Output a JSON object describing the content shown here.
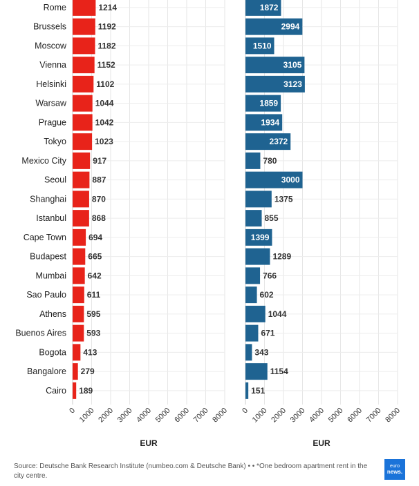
{
  "chart_data": [
    {
      "type": "bar",
      "orientation": "horizontal",
      "categories": [
        "Rome",
        "Brussels",
        "Moscow",
        "Vienna",
        "Helsinki",
        "Warsaw",
        "Prague",
        "Tokyo",
        "Mexico City",
        "Seoul",
        "Shanghai",
        "Istanbul",
        "Cape Town",
        "Budapest",
        "Mumbai",
        "Sao Paulo",
        "Athens",
        "Buenos Aires",
        "Bogota",
        "Bangalore",
        "Cairo"
      ],
      "values": [
        1214,
        1192,
        1182,
        1152,
        1102,
        1044,
        1042,
        1023,
        917,
        887,
        870,
        868,
        694,
        665,
        642,
        611,
        595,
        593,
        413,
        279,
        189
      ],
      "xlabel": "EUR",
      "xlim": [
        0,
        8000
      ],
      "ticks": [
        0,
        1000,
        2000,
        3000,
        4000,
        5000,
        6000,
        7000,
        8000
      ],
      "color": "#e8231a",
      "grid": true
    },
    {
      "type": "bar",
      "orientation": "horizontal",
      "categories": [
        "Rome",
        "Brussels",
        "Moscow",
        "Vienna",
        "Helsinki",
        "Warsaw",
        "Prague",
        "Tokyo",
        "Mexico City",
        "Seoul",
        "Shanghai",
        "Istanbul",
        "Cape Town",
        "Budapest",
        "Mumbai",
        "Sao Paulo",
        "Athens",
        "Buenos Aires",
        "Bogota",
        "Bangalore",
        "Cairo"
      ],
      "values": [
        1872,
        2994,
        1510,
        3105,
        3123,
        1859,
        1934,
        2372,
        780,
        3000,
        1375,
        855,
        1399,
        1289,
        766,
        602,
        1044,
        671,
        343,
        1154,
        151
      ],
      "xlabel": "EUR",
      "xlim": [
        0,
        8000
      ],
      "ticks": [
        0,
        1000,
        2000,
        3000,
        4000,
        5000,
        6000,
        7000,
        8000
      ],
      "color": "#1f6391",
      "grid": true
    }
  ],
  "footer": {
    "source": "Source: Deutsche Bank Research Institute (numbeo.com & Deutsche Bank) • • *One bedroom apartment rent in the city centre."
  },
  "logo": {
    "line1": "euro",
    "line2": "news."
  }
}
